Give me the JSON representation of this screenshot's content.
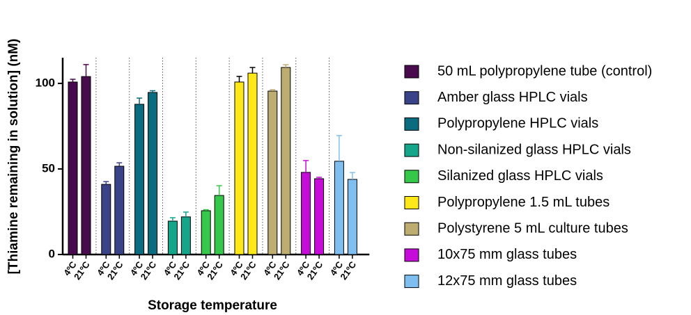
{
  "chart_data": {
    "type": "bar",
    "y_label": "[Thiamine remaining in solution] (nM)",
    "x_label": "Storage temperature",
    "categories": [
      "4ºC",
      "21ºC"
    ],
    "ylim": [
      0,
      115
    ],
    "yticks": [
      0,
      50,
      100
    ],
    "separators": true,
    "series": [
      {
        "name": "50 mL polypropylene tube (control)",
        "color": "#4a0a4e",
        "label_color": "#000000",
        "values": [
          100.8,
          104
        ],
        "errors": [
          1.6,
          7
        ]
      },
      {
        "name": "Amber glass HPLC vials",
        "color": "#3a4288",
        "label_color": "#000000",
        "values": [
          41,
          51.6
        ],
        "errors": [
          1.6,
          2
        ]
      },
      {
        "name": "Polypropylene HPLC vials",
        "color": "#0b6b7f",
        "label_color": "#000000",
        "values": [
          87.8,
          94.7
        ],
        "errors": [
          3.6,
          1
        ]
      },
      {
        "name": "Non-silanized glass HPLC vials",
        "color": "#14a58a",
        "label_color": "#000000",
        "values": [
          19.5,
          22
        ],
        "errors": [
          2,
          2.8
        ]
      },
      {
        "name": "Silanized glass HPLC vials",
        "color": "#35c84a",
        "label_color": "#000000",
        "values": [
          25.6,
          34.5
        ],
        "errors": [
          0.6,
          5.7
        ]
      },
      {
        "name": "Polypropylene 1.5 mL tubes",
        "color": "#ffe81a",
        "label_color": "#000000",
        "values": [
          100.8,
          106
        ],
        "errors": [
          3.3,
          3.3
        ]
      },
      {
        "name": "Polystyrene 5 mL culture tubes",
        "color": "#bdad70",
        "label_color": "#bdad70",
        "values": [
          95.5,
          109.3
        ],
        "errors": [
          0.8,
          1.6
        ]
      },
      {
        "name": "10x75 mm glass tubes",
        "color": "#c60cd8",
        "label_color": "#c60cd8",
        "values": [
          48,
          44.3
        ],
        "errors": [
          6.9,
          0.8
        ]
      },
      {
        "name": "12x75 mm glass tubes",
        "color": "#7fbff0",
        "label_color": "#7fbff0",
        "values": [
          54.5,
          43.9
        ],
        "errors": [
          15,
          4
        ]
      }
    ]
  }
}
